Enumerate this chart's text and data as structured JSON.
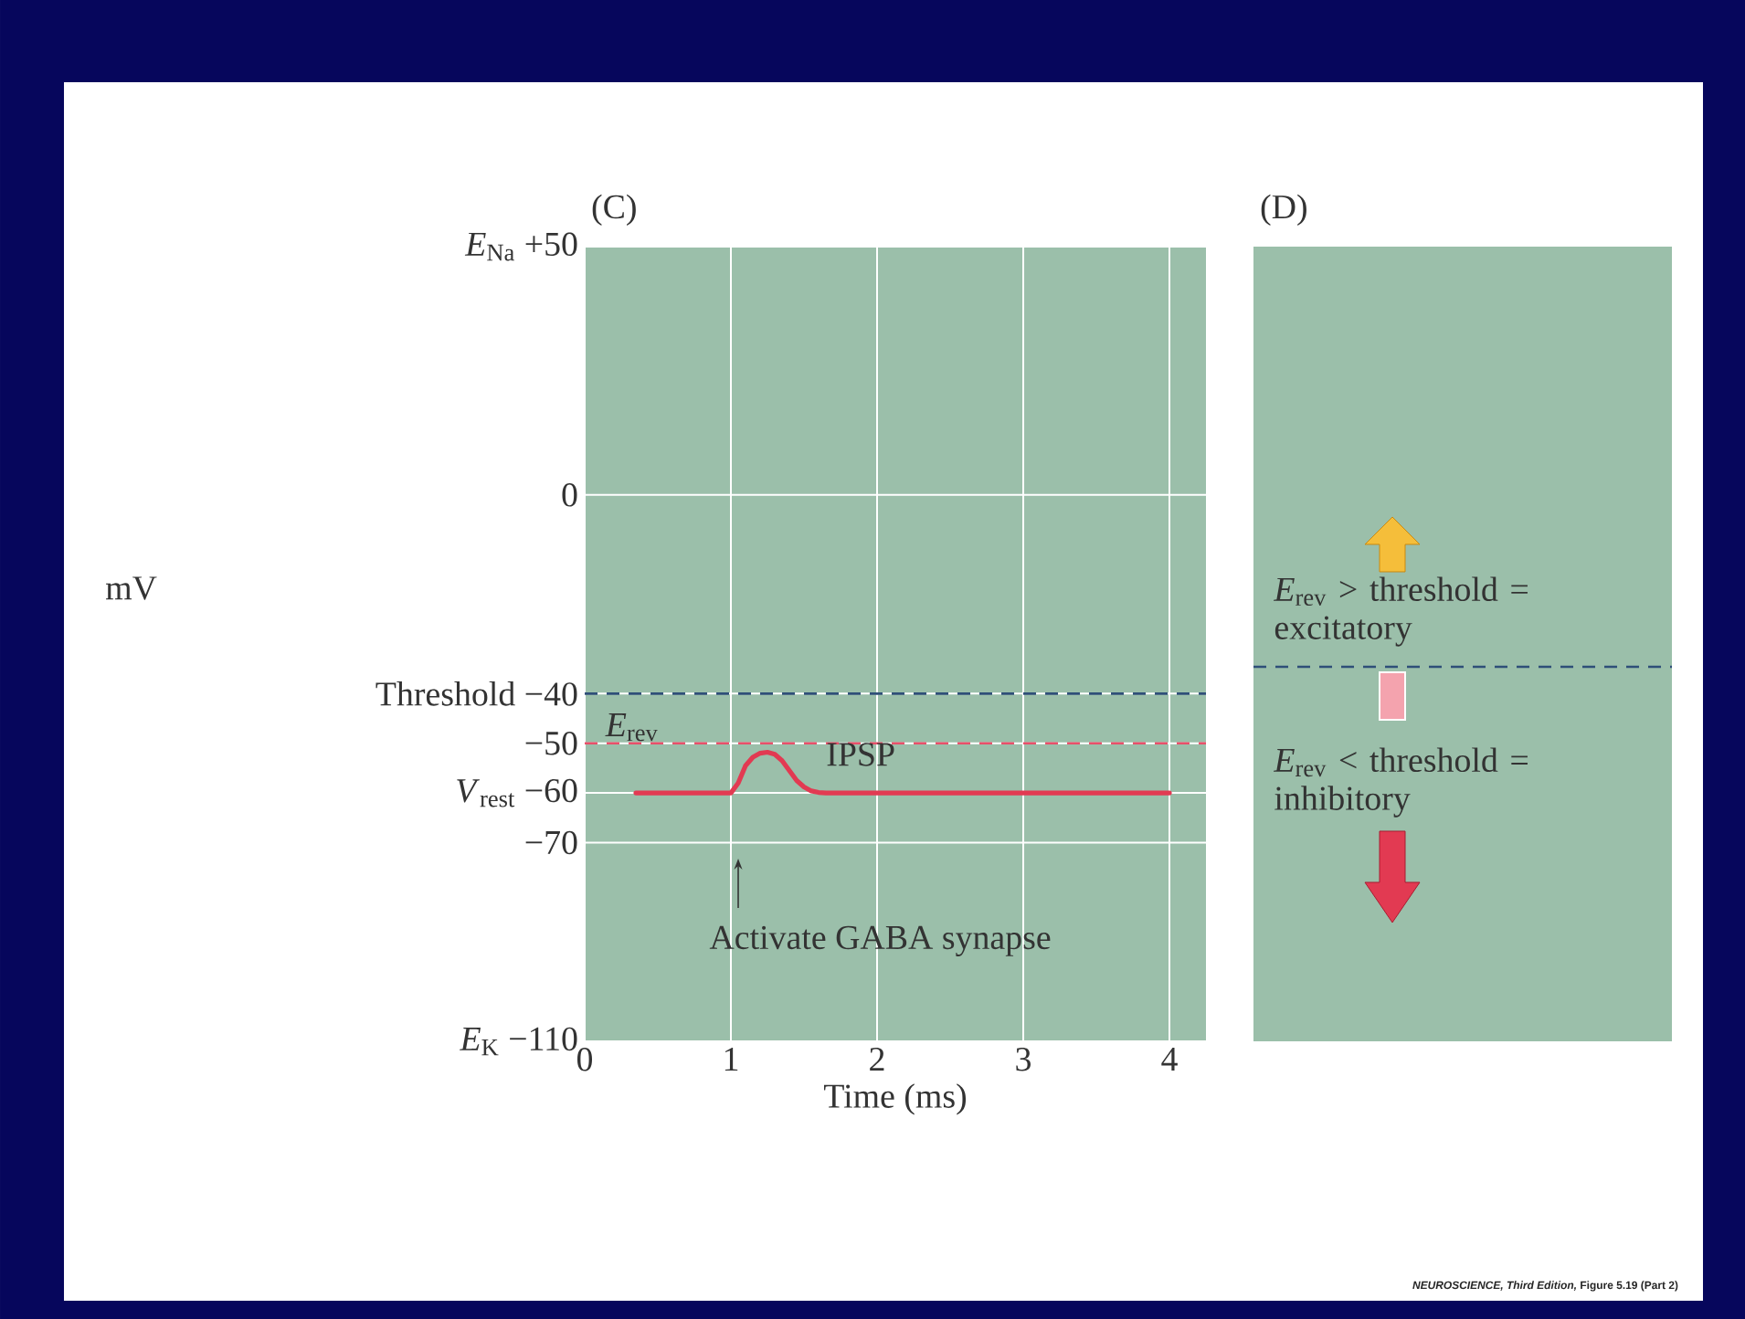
{
  "chart_data": [
    {
      "type": "line",
      "title": "(C)",
      "xlabel": "Time (ms)",
      "ylabel": "mV",
      "x": [
        0.35,
        1.0,
        1.05,
        1.1,
        1.15,
        1.2,
        1.25,
        1.3,
        1.35,
        1.4,
        1.45,
        1.5,
        1.55,
        1.6,
        1.65,
        4.0
      ],
      "series": [
        {
          "color": "#e23a52",
          "values": [
            -60,
            -60,
            -58,
            -54.5,
            -52.8,
            -52,
            -51.8,
            -52.2,
            -53.5,
            -55.5,
            -57.5,
            -58.8,
            -59.6,
            -59.9,
            -60,
            -60
          ]
        }
      ],
      "xlim": [
        0,
        4.25
      ],
      "ylim": [
        -110,
        50
      ],
      "xticks": [
        0,
        1,
        2,
        3,
        4
      ],
      "yticks": [
        {
          "value": 50,
          "label": "*E*$_{Na}$ +50"
        },
        0,
        {
          "value": -40,
          "label": "Threshold −40"
        },
        {
          "value": -50,
          "label": "−50"
        },
        {
          "value": -60,
          "label": "*V*$_{rest}$ −60"
        },
        {
          "value": -70,
          "label": "−70"
        },
        {
          "value": -110,
          "label": "*E*$_{K}$ −110"
        }
      ],
      "grid": true,
      "ref_lines": [
        {
          "axis": "y",
          "value": -40,
          "color": "#2f4f78",
          "line_style": "dashed"
        },
        {
          "axis": "y",
          "value": -50,
          "label": "*E*$_{rev}$",
          "color": "#e8506a",
          "line_style": "dashed"
        }
      ],
      "annotations": [
        "IPSP",
        "Activate GABA synapse",
        "*NEUROSCIENCE, Third Edition,* Figure 5.19 (Part 2)"
      ]
    },
    {
      "type": "other",
      "title": "(D)",
      "annotations": [
        "*E*$_{rev}$ > threshold = excitatory",
        "*E*$_{rev}$ < threshold = inhibitory"
      ]
    }
  ]
}
